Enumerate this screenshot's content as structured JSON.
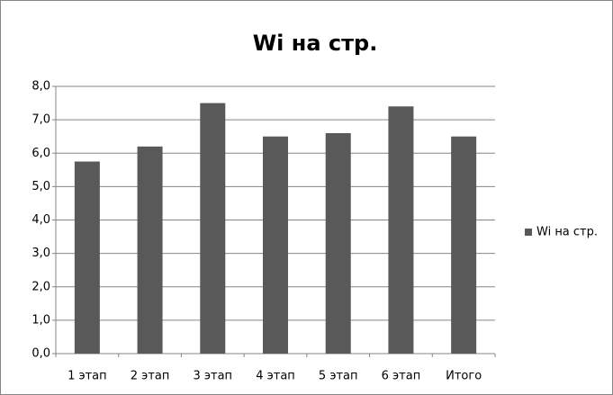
{
  "chart_data": {
    "type": "bar",
    "title": "Wi на стр.",
    "categories": [
      "1 этап",
      "2 этап",
      "3 этап",
      "4 этап",
      "5 этап",
      "6 этап",
      "Итого"
    ],
    "series": [
      {
        "name": "Wi на стр.",
        "color": "#595959",
        "values": [
          5.75,
          6.2,
          7.5,
          6.5,
          6.6,
          7.4,
          6.5
        ]
      }
    ],
    "ylim": [
      0,
      8
    ],
    "yticks": [
      {
        "value": 0,
        "label": "0,0"
      },
      {
        "value": 1,
        "label": "1,0"
      },
      {
        "value": 2,
        "label": "2,0"
      },
      {
        "value": 3,
        "label": "3,0"
      },
      {
        "value": 4,
        "label": "4,0"
      },
      {
        "value": 5,
        "label": "5,0"
      },
      {
        "value": 6,
        "label": "6,0"
      },
      {
        "value": 7,
        "label": "7,0"
      },
      {
        "value": 8,
        "label": "8,0"
      }
    ],
    "grid": true,
    "legend": "right"
  }
}
